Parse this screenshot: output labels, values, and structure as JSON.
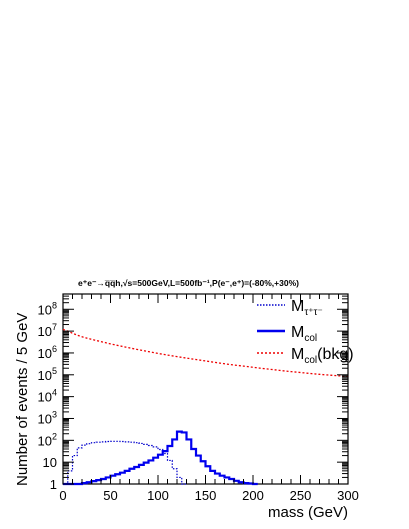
{
  "chart_data": {
    "type": "line",
    "title": "e⁺e⁻→q̅q̅h,√s=500GeV,L=500fb⁻¹,P(e⁻,e⁺)=(-80%,+30%)",
    "xlabel": "mass (GeV)",
    "ylabel": "Number of events / 5 GeV",
    "xlim": [
      0,
      300
    ],
    "ylim": [
      1,
      500000000
    ],
    "yscale": "log",
    "grid": false,
    "legend_position": "top-right",
    "x_ticks": [
      "0",
      "50",
      "100",
      "150",
      "200",
      "250",
      "300"
    ],
    "y_ticks": [
      {
        "base": "10",
        "exp": "8"
      },
      {
        "base": "10",
        "exp": "7"
      },
      {
        "base": "10",
        "exp": "6"
      },
      {
        "base": "10",
        "exp": "5"
      },
      {
        "base": "10",
        "exp": "4"
      },
      {
        "base": "10",
        "exp": "3"
      },
      {
        "base": "10",
        "exp": "2"
      },
      {
        "base": "10",
        "exp": ""
      },
      {
        "base": "1",
        "exp": ""
      }
    ],
    "bin_width": 5,
    "series": [
      {
        "name": "M_{τ⁺τ⁻}",
        "legend": {
          "main": "M",
          "sub": "τ⁺τ⁻",
          "suffix": ""
        },
        "color": "#0000cc",
        "style": "dotted-hist",
        "x": [
          0,
          5,
          10,
          15,
          20,
          25,
          30,
          35,
          40,
          45,
          50,
          55,
          60,
          65,
          70,
          75,
          80,
          85,
          90,
          95,
          100,
          105,
          110,
          115,
          120,
          125
        ],
        "values": [
          1,
          4,
          20,
          45,
          60,
          70,
          78,
          82,
          85,
          88,
          90,
          90,
          88,
          85,
          82,
          78,
          72,
          65,
          58,
          50,
          38,
          25,
          12,
          5,
          2,
          1
        ]
      },
      {
        "name": "M_{col}",
        "legend": {
          "main": "M",
          "sub": "col",
          "suffix": ""
        },
        "color": "#0000ee",
        "style": "solid-hist",
        "x": [
          0,
          5,
          10,
          15,
          20,
          25,
          30,
          35,
          40,
          45,
          50,
          55,
          60,
          65,
          70,
          75,
          80,
          85,
          90,
          95,
          100,
          105,
          110,
          115,
          120,
          125,
          130,
          135,
          140,
          145,
          150,
          155,
          160,
          165,
          170,
          175,
          180,
          185,
          190,
          195,
          200
        ],
        "values": [
          1,
          1,
          1,
          1,
          1.1,
          1.2,
          1.35,
          1.5,
          1.7,
          2,
          2.4,
          2.8,
          3.3,
          4,
          5,
          6,
          7.5,
          9.5,
          12,
          16,
          22,
          32,
          55,
          110,
          250,
          230,
          110,
          40,
          20,
          11,
          6.5,
          4,
          3,
          2.4,
          2,
          1.7,
          1.4,
          1.2,
          1.1,
          1.05,
          1
        ]
      },
      {
        "name": "M_{col}(bkg)",
        "legend": {
          "main": "M",
          "sub": "col",
          "suffix": "(bkg)"
        },
        "color": "#ee0000",
        "style": "dashed",
        "x": [
          0,
          5,
          10,
          15,
          20,
          25,
          30,
          40,
          50,
          60,
          70,
          80,
          90,
          100,
          110,
          120,
          130,
          140,
          150,
          160,
          170,
          180,
          190,
          200,
          210,
          220,
          230,
          240,
          250,
          260,
          270,
          280,
          290,
          300
        ],
        "values": [
          12000000,
          10000000,
          8000000,
          6500000,
          5500000,
          4800000,
          4200000,
          3300000,
          2600000,
          2100000,
          1700000,
          1400000,
          1150000,
          950000,
          800000,
          680000,
          580000,
          500000,
          430000,
          370000,
          320000,
          280000,
          250000,
          220000,
          195000,
          175000,
          155000,
          140000,
          127000,
          115000,
          105000,
          97000,
          90000,
          85000
        ]
      }
    ]
  }
}
